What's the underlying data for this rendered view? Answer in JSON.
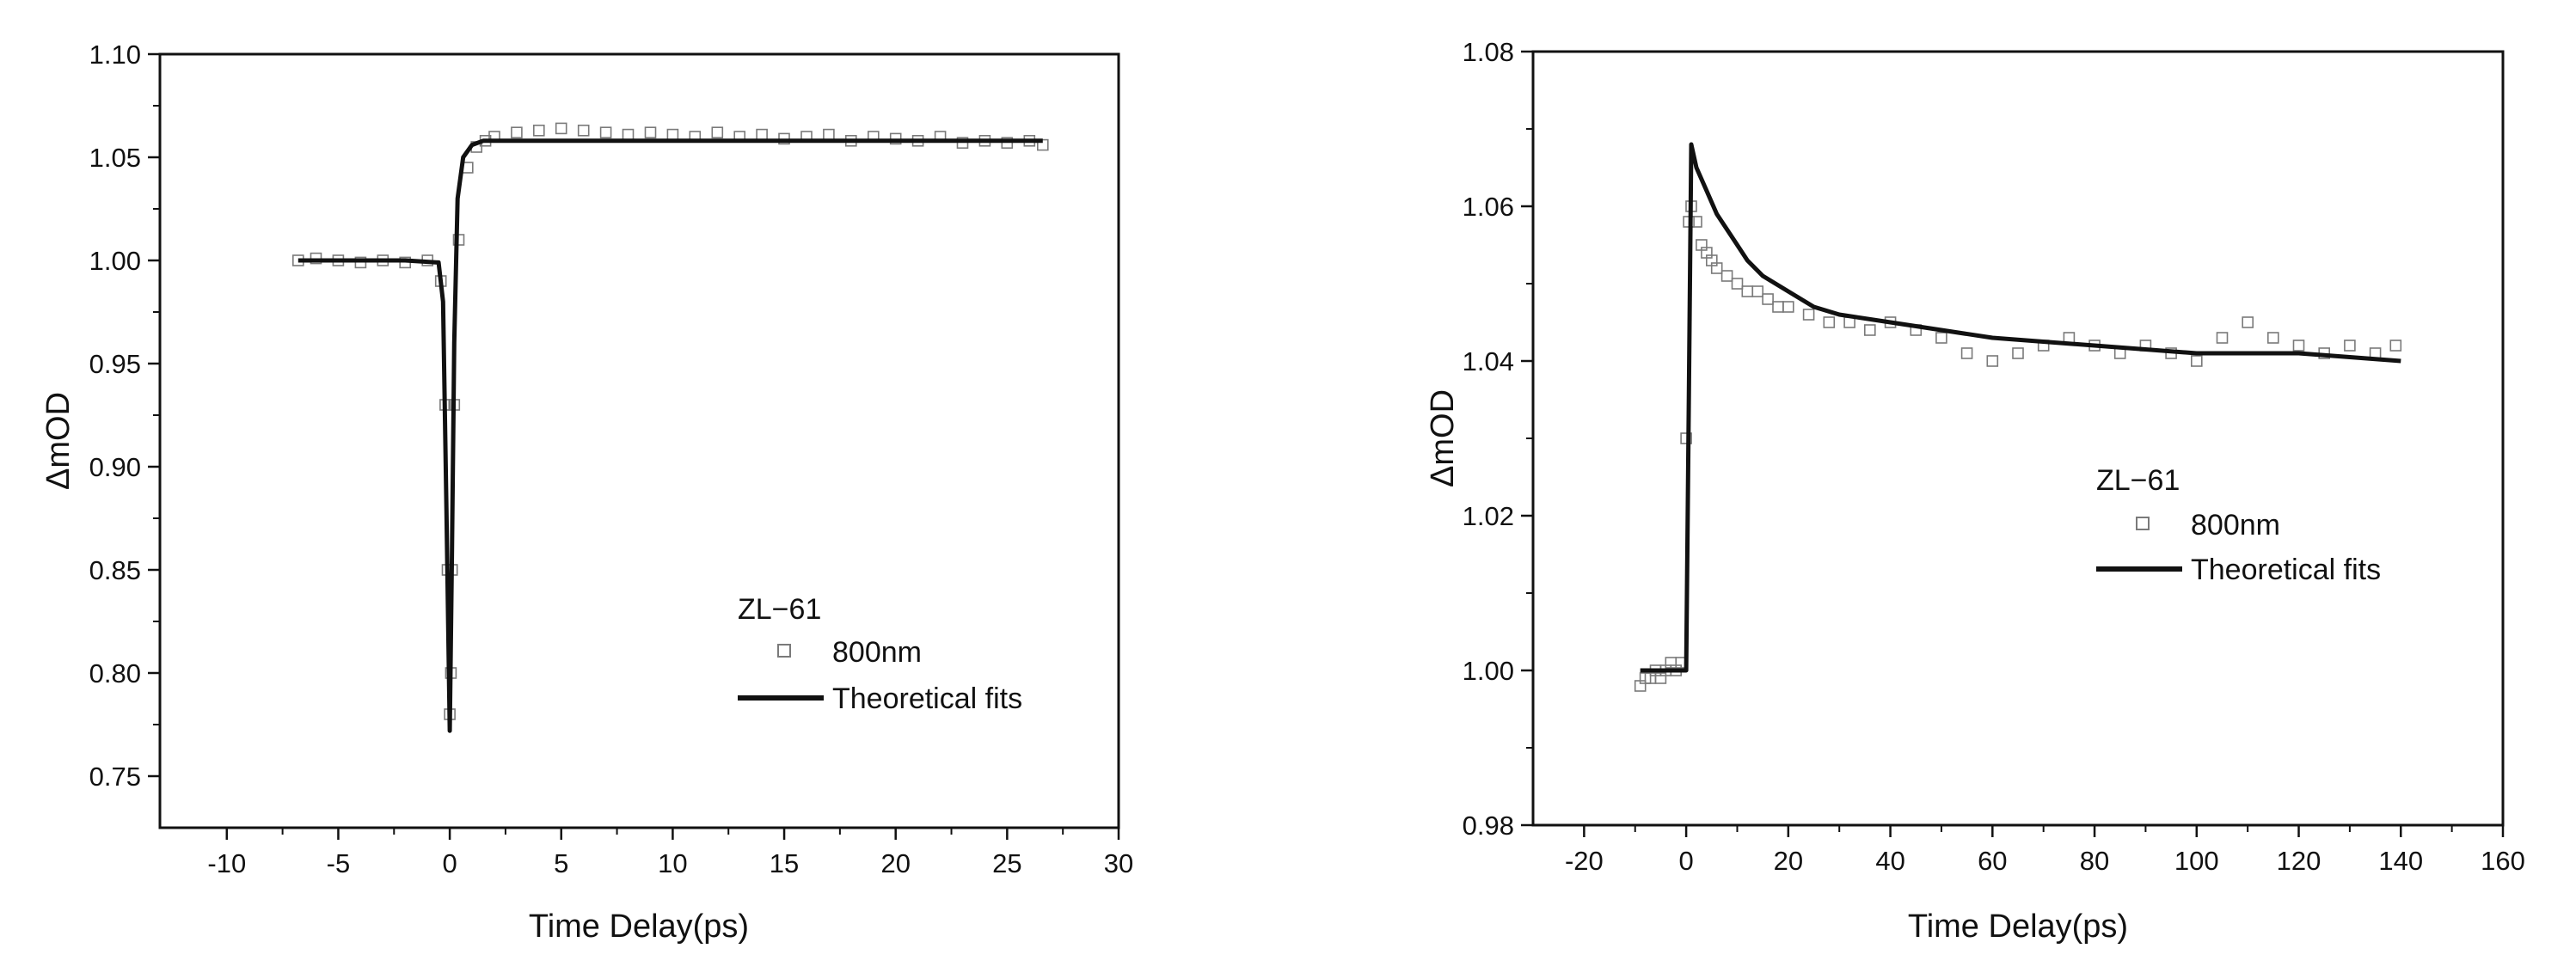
{
  "colors": {
    "ink": "#111111",
    "marker": "#7a7a7a",
    "background": "#ffffff"
  },
  "chart_data": [
    {
      "type": "scatter",
      "title": "",
      "xlabel": "Time Delay(ps)",
      "ylabel": "ΔmOD",
      "xlim": [
        -13,
        30
      ],
      "ylim": [
        0.725,
        1.1
      ],
      "xticks": [
        "-10",
        "-5",
        "0",
        "5",
        "10",
        "15",
        "20",
        "25",
        "30"
      ],
      "yticks": [
        "0.75",
        "0.80",
        "0.85",
        "0.90",
        "0.95",
        "1.00",
        "1.05",
        "1.10"
      ],
      "grid": false,
      "legend": {
        "title": "ZL−61",
        "placement": "bottom-right",
        "entries": [
          {
            "label": "800nm",
            "marker": "open-square"
          },
          {
            "label": "Theoretical fits",
            "marker": "line"
          }
        ]
      },
      "series": [
        {
          "name": "800nm",
          "style": "markers",
          "x": [
            -6.8,
            -6.0,
            -5.0,
            -4.0,
            -3.0,
            -2.0,
            -1.0,
            -0.4,
            -0.2,
            -0.1,
            0.0,
            0.05,
            0.1,
            0.2,
            0.4,
            0.8,
            1.2,
            1.6,
            2.0,
            3.0,
            4.0,
            5.0,
            6.0,
            7.0,
            8.0,
            9.0,
            10.0,
            11.0,
            12.0,
            13.0,
            14.0,
            15.0,
            16.0,
            17.0,
            18.0,
            19.0,
            20.0,
            21.0,
            22.0,
            23.0,
            24.0,
            25.0,
            26.0,
            26.6
          ],
          "y": [
            1.0,
            1.001,
            1.0,
            0.999,
            1.0,
            0.999,
            1.0,
            0.99,
            0.93,
            0.85,
            0.78,
            0.8,
            0.85,
            0.93,
            1.01,
            1.045,
            1.055,
            1.058,
            1.06,
            1.062,
            1.063,
            1.064,
            1.063,
            1.062,
            1.061,
            1.062,
            1.061,
            1.06,
            1.062,
            1.06,
            1.061,
            1.059,
            1.06,
            1.061,
            1.058,
            1.06,
            1.059,
            1.058,
            1.06,
            1.057,
            1.058,
            1.057,
            1.058,
            1.056
          ]
        },
        {
          "name": "Theoretical fits",
          "style": "line",
          "x": [
            -6.8,
            -2.0,
            -0.5,
            -0.3,
            -0.15,
            0.0,
            0.1,
            0.2,
            0.35,
            0.6,
            1.0,
            1.5,
            2.0,
            5.0,
            10.0,
            15.0,
            20.0,
            25.0,
            26.6
          ],
          "y": [
            1.0,
            1.0,
            0.999,
            0.98,
            0.88,
            0.772,
            0.86,
            0.96,
            1.03,
            1.05,
            1.056,
            1.058,
            1.058,
            1.058,
            1.058,
            1.058,
            1.058,
            1.058,
            1.058
          ]
        }
      ]
    },
    {
      "type": "scatter",
      "title": "",
      "xlabel": "Time Delay(ps)",
      "ylabel": "ΔmOD",
      "xlim": [
        -30,
        160
      ],
      "ylim": [
        0.98,
        1.08
      ],
      "xticks": [
        "-20",
        "0",
        "20",
        "40",
        "60",
        "80",
        "100",
        "120",
        "140",
        "160"
      ],
      "yticks": [
        "0.98",
        "1.00",
        "1.02",
        "1.04",
        "1.06",
        "1.08"
      ],
      "grid": false,
      "legend": {
        "title": "ZL−61",
        "placement": "center-right",
        "entries": [
          {
            "label": "800nm",
            "marker": "open-square"
          },
          {
            "label": "Theoretical fits",
            "marker": "line"
          }
        ]
      },
      "series": [
        {
          "name": "800nm",
          "style": "markers",
          "x": [
            -9,
            -8,
            -7,
            -6,
            -5,
            -4,
            -3,
            -2,
            -1,
            0,
            0.5,
            1,
            2,
            3,
            4,
            5,
            6,
            8,
            10,
            12,
            14,
            16,
            18,
            20,
            24,
            28,
            32,
            36,
            40,
            45,
            50,
            55,
            60,
            65,
            70,
            75,
            80,
            85,
            90,
            95,
            100,
            105,
            110,
            115,
            120,
            125,
            130,
            135,
            139
          ],
          "y": [
            0.998,
            0.999,
            0.999,
            1.0,
            0.999,
            1.0,
            1.001,
            1.0,
            1.001,
            1.03,
            1.058,
            1.06,
            1.058,
            1.055,
            1.054,
            1.053,
            1.052,
            1.051,
            1.05,
            1.049,
            1.049,
            1.048,
            1.047,
            1.047,
            1.046,
            1.045,
            1.045,
            1.044,
            1.045,
            1.044,
            1.043,
            1.041,
            1.04,
            1.041,
            1.042,
            1.043,
            1.042,
            1.041,
            1.042,
            1.041,
            1.04,
            1.043,
            1.045,
            1.043,
            1.042,
            1.041,
            1.042,
            1.041,
            1.042
          ]
        },
        {
          "name": "Theoretical fits",
          "style": "line",
          "x": [
            -9,
            -1,
            0,
            0.5,
            1,
            2,
            4,
            6,
            8,
            10,
            12,
            15,
            20,
            25,
            30,
            40,
            50,
            60,
            80,
            100,
            120,
            140
          ],
          "y": [
            1.0,
            1.0,
            1.0,
            1.034,
            1.068,
            1.065,
            1.062,
            1.059,
            1.057,
            1.055,
            1.053,
            1.051,
            1.049,
            1.047,
            1.046,
            1.045,
            1.044,
            1.043,
            1.042,
            1.041,
            1.041,
            1.04
          ]
        }
      ]
    }
  ]
}
